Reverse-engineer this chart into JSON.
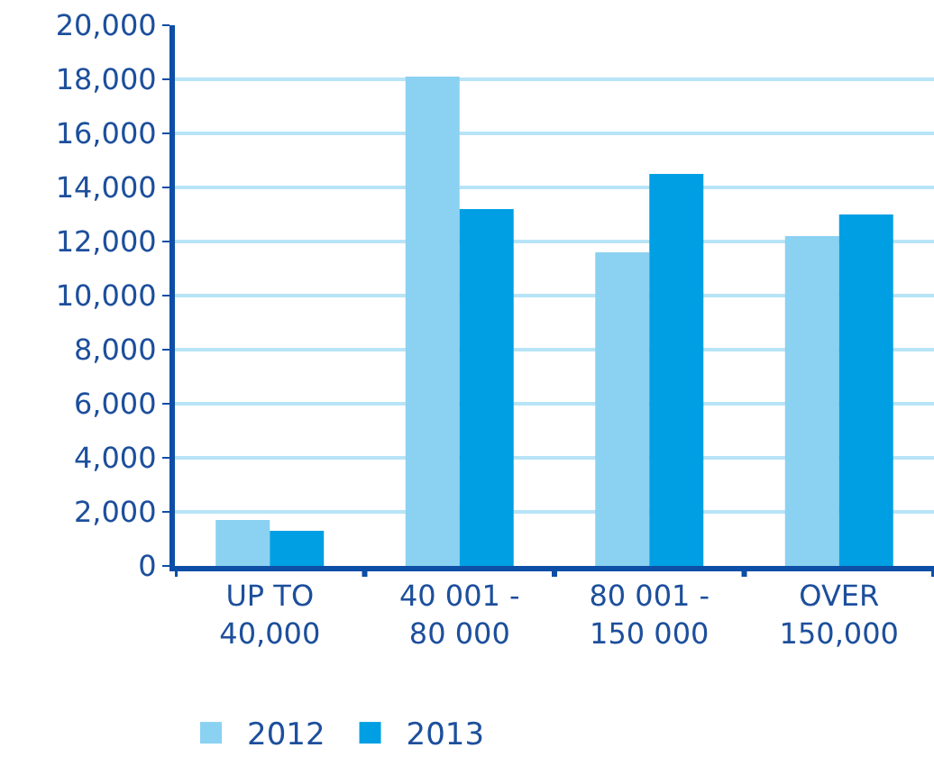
{
  "chart_data": {
    "type": "bar",
    "categories": [
      "UP TO\n40,000",
      "40 001 -\n80 000",
      "80 001 -\n150 000",
      "OVER\n150,000"
    ],
    "series": [
      {
        "name": "2012",
        "color": "#8bd1f1",
        "values": [
          1700,
          18100,
          11600,
          12200
        ]
      },
      {
        "name": "2013",
        "color": "#009fe3",
        "values": [
          1300,
          13200,
          14500,
          13000
        ]
      }
    ],
    "ylim": [
      0,
      20000
    ],
    "yticks": [
      {
        "value": 0,
        "label": "0"
      },
      {
        "value": 2000,
        "label": "2,000"
      },
      {
        "value": 4000,
        "label": "4,000"
      },
      {
        "value": 6000,
        "label": "6,000"
      },
      {
        "value": 8000,
        "label": "8,000"
      },
      {
        "value": 10000,
        "label": "10,000"
      },
      {
        "value": 12000,
        "label": "12,000"
      },
      {
        "value": 14000,
        "label": "14,000"
      },
      {
        "value": 16000,
        "label": "16,000"
      },
      {
        "value": 18000,
        "label": "18,000"
      },
      {
        "value": 20000,
        "label": "20,000"
      }
    ],
    "grid": "y",
    "legend": "bottom left"
  }
}
